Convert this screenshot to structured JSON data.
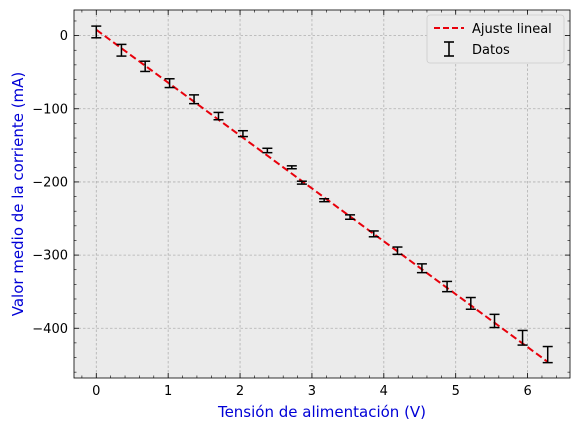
{
  "chart_data": {
    "type": "scatter",
    "xlabel": "Tensión de alimentación (V)",
    "ylabel": "Valor medio de la corriente (mA)",
    "xlim": [
      -0.31,
      6.59
    ],
    "ylim": [
      -468,
      35
    ],
    "xticks": [
      0,
      1,
      2,
      3,
      4,
      5,
      6
    ],
    "yticks": [
      0,
      -100,
      -200,
      -300,
      -400
    ],
    "grid": true,
    "legend_position": "top-right",
    "series": [
      {
        "name": "Ajuste lineal",
        "kind": "line",
        "style": "dashed",
        "color": "#e8000b",
        "x": [
          0,
          6.28
        ],
        "y": [
          8,
          -446
        ]
      },
      {
        "name": "Datos",
        "kind": "errorbar",
        "color": "#000000",
        "x": [
          0,
          0.35,
          0.68,
          1.02,
          1.36,
          1.7,
          2.04,
          2.38,
          2.72,
          2.86,
          3.17,
          3.53,
          3.86,
          4.19,
          4.53,
          4.88,
          5.21,
          5.54,
          5.93,
          6.28
        ],
        "y": [
          5,
          -20,
          -42,
          -65,
          -87,
          -110,
          -134,
          -157,
          -180,
          -201,
          -225,
          -248,
          -271,
          -294,
          -318,
          -343,
          -366,
          -390,
          -413,
          -436
        ],
        "yerr": [
          8,
          8,
          7,
          6,
          6,
          5,
          4,
          3,
          2,
          2,
          2,
          3,
          4,
          5,
          6,
          7,
          8,
          9,
          10,
          11
        ]
      }
    ],
    "colors": {
      "axes_background": "#ebebeb",
      "grid": "#b0b0b0",
      "label": "#0000d6",
      "fit_line": "#e8000b",
      "data": "#000000"
    }
  }
}
